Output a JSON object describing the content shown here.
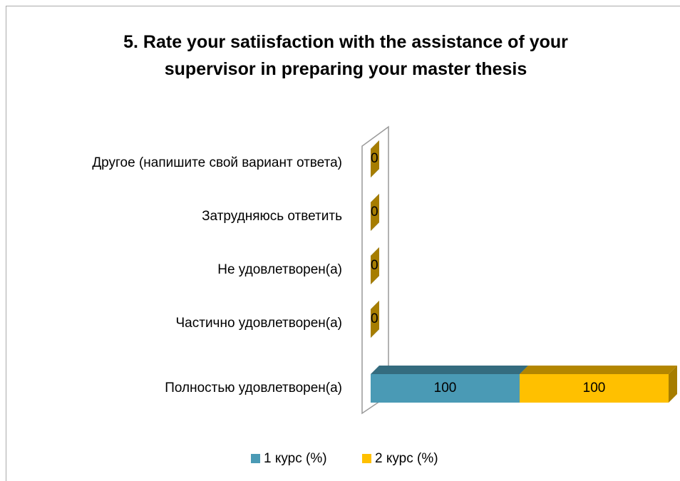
{
  "chart_data": {
    "type": "bar3d_stacked_horizontal",
    "title": "5. Rate your satiisfaction with the assistance of your supervisor in preparing your master thesis",
    "categories": [
      "Полностью удовлетворен(а)",
      "Частично удовлетворен(а)",
      "Не удовлетворен(а)",
      "Затрудняюсь ответить",
      "Другое (напишите свой вариант ответа)"
    ],
    "series": [
      {
        "name": "1 курс (%)",
        "color": "#4a9ab5",
        "values": [
          100,
          0,
          0,
          0,
          0
        ]
      },
      {
        "name": "2 курс (%)",
        "color": "#ffc000",
        "values": [
          100,
          0,
          0,
          0,
          0
        ]
      }
    ],
    "xlim": [
      0,
      200
    ],
    "legend": "bottom"
  }
}
